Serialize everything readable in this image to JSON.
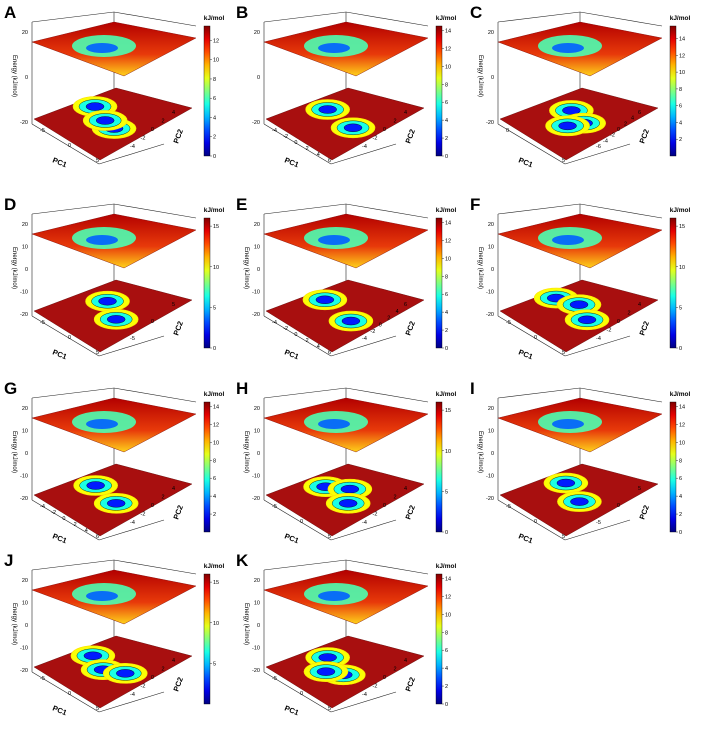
{
  "chart_data": [
    {
      "type": "heatmap",
      "panel": "A",
      "title": "",
      "xlabel": "PC1",
      "ylabel": "PC2",
      "zlabel": "Energy (kJ/mol)",
      "colorbar_label": "kJ/mol",
      "colorbar_ticks": [
        "0",
        "2",
        "4",
        "6",
        "8",
        "10",
        "12"
      ],
      "zlim": [
        0,
        13.5
      ],
      "z_axis_ticks": [
        "20",
        "0",
        "-20"
      ],
      "x_ticks": [
        "-5",
        "0",
        "5"
      ],
      "y_ticks": [
        "4",
        "2",
        "0",
        "-2",
        "-4"
      ],
      "minima": [
        {
          "x": -2.5,
          "y": 1.5
        },
        {
          "x": 2.5,
          "y": -0.5
        },
        {
          "x": 0.5,
          "y": 0.0
        }
      ]
    },
    {
      "type": "heatmap",
      "panel": "B",
      "title": "",
      "xlabel": "PC1",
      "ylabel": "PC2",
      "zlabel": "",
      "colorbar_label": "kJ/mol",
      "colorbar_ticks": [
        "0",
        "2",
        "4",
        "6",
        "8",
        "10",
        "12",
        "14"
      ],
      "zlim": [
        0,
        14.5
      ],
      "z_axis_ticks": [
        "20",
        "0",
        "-20"
      ],
      "x_ticks": [
        "-4",
        "-2",
        "0",
        "2",
        "4",
        "6"
      ],
      "y_ticks": [
        "4",
        "2",
        "0",
        "-2",
        "-4"
      ],
      "minima": [
        {
          "x": -2.0,
          "y": 1.0
        },
        {
          "x": 3.0,
          "y": 0.5
        }
      ]
    },
    {
      "type": "heatmap",
      "panel": "C",
      "title": "",
      "xlabel": "PC1",
      "ylabel": "PC2",
      "zlabel": "Energy (kJ/mol)",
      "colorbar_label": "kJ/mol",
      "colorbar_ticks": [
        "2",
        "4",
        "6",
        "8",
        "10",
        "12",
        "14"
      ],
      "zlim": [
        0,
        15.5
      ],
      "z_axis_ticks": [
        "20",
        "0",
        "-20"
      ],
      "x_ticks": [
        "0",
        "5"
      ],
      "y_ticks": [
        "6",
        "4",
        "2",
        "0",
        "-2",
        "-4",
        "-6"
      ],
      "minima": [
        {
          "x": -1.0,
          "y": 2.0
        },
        {
          "x": 2.0,
          "y": 1.0
        },
        {
          "x": 1.0,
          "y": -1.5
        }
      ]
    },
    {
      "type": "heatmap",
      "panel": "D",
      "title": "",
      "xlabel": "PC1",
      "ylabel": "PC2",
      "zlabel": "Energy (kJ/mol)",
      "colorbar_label": "kJ/mol",
      "colorbar_ticks": [
        "0",
        "5",
        "10",
        "15"
      ],
      "zlim": [
        0,
        16
      ],
      "z_axis_ticks": [
        "20",
        "10",
        "0",
        "-10",
        "-20"
      ],
      "x_ticks": [
        "-5",
        "0",
        "5"
      ],
      "y_ticks": [
        "5",
        "0",
        "-5"
      ],
      "minima": [
        {
          "x": -1.0,
          "y": 2.5
        },
        {
          "x": 2.5,
          "y": 0.0
        }
      ]
    },
    {
      "type": "heatmap",
      "panel": "E",
      "title": "",
      "xlabel": "PC1",
      "ylabel": "PC2",
      "zlabel": "Energy (kJ/mol)",
      "colorbar_label": "kJ/mol",
      "colorbar_ticks": [
        "0",
        "2",
        "4",
        "6",
        "8",
        "10",
        "12",
        "14"
      ],
      "zlim": [
        0,
        14.5
      ],
      "z_axis_ticks": [
        "20",
        "10",
        "0",
        "-10",
        "-20"
      ],
      "x_ticks": [
        "-4",
        "-2",
        "0",
        "2",
        "4",
        "6"
      ],
      "y_ticks": [
        "6",
        "4",
        "2",
        "0",
        "-2",
        "-4"
      ],
      "minima": [
        {
          "x": -2.5,
          "y": 1.0
        },
        {
          "x": 3.0,
          "y": 0.0
        }
      ]
    },
    {
      "type": "heatmap",
      "panel": "F",
      "title": "",
      "xlabel": "PC1",
      "ylabel": "PC2",
      "zlabel": "Energy (kJ/mol)",
      "colorbar_label": "kJ/mol",
      "colorbar_ticks": [
        "0",
        "5",
        "10",
        "15"
      ],
      "zlim": [
        0,
        16
      ],
      "z_axis_ticks": [
        "20",
        "10",
        "0",
        "-10",
        "-20"
      ],
      "x_ticks": [
        "-5",
        "0",
        "5"
      ],
      "y_ticks": [
        "4",
        "2",
        "0",
        "-2",
        "-4"
      ],
      "minima": [
        {
          "x": -3.0,
          "y": 1.0
        },
        {
          "x": 0.0,
          "y": 2.5
        },
        {
          "x": 3.0,
          "y": 0.5
        }
      ]
    },
    {
      "type": "heatmap",
      "panel": "G",
      "title": "",
      "xlabel": "PC1",
      "ylabel": "PC2",
      "zlabel": "Energy (kJ/mol)",
      "colorbar_label": "kJ/mol",
      "colorbar_ticks": [
        "2",
        "4",
        "6",
        "8",
        "10",
        "12",
        "14"
      ],
      "zlim": [
        0,
        14.5
      ],
      "z_axis_ticks": [
        "20",
        "10",
        "0",
        "-10",
        "-20"
      ],
      "x_ticks": [
        "-4",
        "-2",
        "0",
        "2",
        "4",
        "6"
      ],
      "y_ticks": [
        "4",
        "2",
        "0",
        "-2",
        "-4"
      ],
      "minima": [
        {
          "x": -2.0,
          "y": 1.0
        },
        {
          "x": 2.5,
          "y": 0.0
        }
      ]
    },
    {
      "type": "heatmap",
      "panel": "H",
      "title": "",
      "xlabel": "PC1",
      "ylabel": "PC2",
      "zlabel": "Energy (kJ/mol)",
      "colorbar_label": "kJ/mol",
      "colorbar_ticks": [
        "0",
        "5",
        "10",
        "15"
      ],
      "zlim": [
        0,
        16
      ],
      "z_axis_ticks": [
        "20",
        "10",
        "0",
        "-10",
        "-20"
      ],
      "x_ticks": [
        "-5",
        "0",
        "5"
      ],
      "y_ticks": [
        "4",
        "2",
        "0",
        "-2",
        "-4"
      ],
      "minima": [
        {
          "x": -2.0,
          "y": 0.5
        },
        {
          "x": 0.5,
          "y": 3.0
        },
        {
          "x": 2.5,
          "y": 0.0
        }
      ]
    },
    {
      "type": "heatmap",
      "panel": "I",
      "title": "",
      "xlabel": "PC1",
      "ylabel": "PC2",
      "zlabel": "Energy (kJ/mol)",
      "colorbar_label": "kJ/mol",
      "colorbar_ticks": [
        "0",
        "2",
        "4",
        "6",
        "8",
        "10",
        "12",
        "14"
      ],
      "zlim": [
        0,
        14.5
      ],
      "z_axis_ticks": [
        "20",
        "10",
        "0",
        "-10",
        "-20"
      ],
      "x_ticks": [
        "-5",
        "0",
        "5"
      ],
      "y_ticks": [
        "5",
        "0",
        "-5"
      ],
      "minima": [
        {
          "x": -2.0,
          "y": 2.0
        },
        {
          "x": 2.0,
          "y": 0.0
        }
      ]
    },
    {
      "type": "heatmap",
      "panel": "J",
      "title": "",
      "xlabel": "PC1",
      "ylabel": "PC2",
      "zlabel": "Energy (kJ/mol)",
      "colorbar_label": "kJ/mol",
      "colorbar_ticks": [
        "5",
        "10",
        "15"
      ],
      "zlim": [
        0,
        16
      ],
      "z_axis_ticks": [
        "20",
        "10",
        "0",
        "-10",
        "-20"
      ],
      "x_ticks": [
        "-5",
        "0",
        "5"
      ],
      "y_ticks": [
        "4",
        "2",
        "0",
        "-2",
        "-4"
      ],
      "minima": [
        {
          "x": -2.5,
          "y": 1.0
        },
        {
          "x": 0.5,
          "y": -0.5
        },
        {
          "x": 3.0,
          "y": 1.5
        }
      ]
    },
    {
      "type": "heatmap",
      "panel": "K",
      "title": "",
      "xlabel": "PC1",
      "ylabel": "PC2",
      "zlabel": "Energy (kJ/mol)",
      "colorbar_label": "kJ/mol",
      "colorbar_ticks": [
        "0",
        "2",
        "4",
        "6",
        "8",
        "10",
        "12",
        "14"
      ],
      "zlim": [
        0,
        14.5
      ],
      "z_axis_ticks": [
        "20",
        "10",
        "0",
        "-10",
        "-20"
      ],
      "x_ticks": [
        "-5",
        "0",
        "5"
      ],
      "y_ticks": [
        "4",
        "2",
        "0",
        "-2",
        "-4"
      ],
      "minima": [
        {
          "x": -2.0,
          "y": 1.0
        },
        {
          "x": 2.0,
          "y": -0.5
        },
        {
          "x": 0.0,
          "y": -2.0
        }
      ]
    }
  ]
}
